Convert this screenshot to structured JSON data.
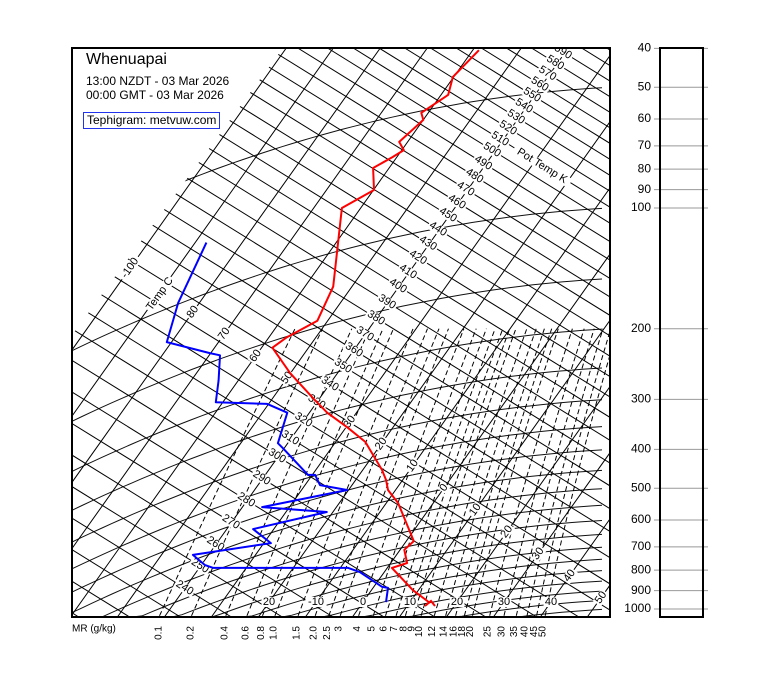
{
  "header": {
    "station": "Whenuapai",
    "local_time": "13:00 NZDT - 03 Mar 2026",
    "gmt_time": "00:00 GMT - 03 Mar 2026",
    "source": "Tephigram: metvuw.com"
  },
  "chart_data": {
    "type": "line",
    "diagram": "tephigram",
    "pressure_axis": {
      "scale": "log",
      "range_hpa": [
        1000,
        40
      ],
      "ticks": [
        "40",
        "50",
        "60",
        "70",
        "80",
        "90",
        "100",
        "200",
        "300",
        "400",
        "500",
        "600",
        "700",
        "800",
        "900",
        "1000"
      ]
    },
    "isotherm_axis_label": "Temp C",
    "isotherm_labels": [
      {
        "t": -100,
        "label": "-100"
      },
      {
        "t": -80,
        "label": "80"
      },
      {
        "t": -70,
        "label": "70"
      },
      {
        "t": -60,
        "label": "60"
      },
      {
        "t": -50,
        "label": "50"
      },
      {
        "t": -30,
        "label": "30"
      },
      {
        "t": -20,
        "label": "20"
      },
      {
        "t": -10,
        "label": "10"
      },
      {
        "t": 0,
        "label": "0"
      },
      {
        "t": 10,
        "label": "10"
      },
      {
        "t": 20,
        "label": "20"
      },
      {
        "t": 30,
        "label": "30"
      },
      {
        "t": 40,
        "label": "40"
      },
      {
        "t": 50,
        "label": "50"
      }
    ],
    "bottom_isotherm_labels": [
      {
        "t": -20,
        "label": "20"
      },
      {
        "t": -10,
        "label": "-10"
      },
      {
        "t": 0,
        "label": "0"
      },
      {
        "t": 10,
        "label": "10"
      },
      {
        "t": 20,
        "label": "20"
      },
      {
        "t": 30,
        "label": "30"
      },
      {
        "t": 40,
        "label": "40"
      }
    ],
    "pot_temp_axis_label": "Pot Temp K",
    "pot_temp_labels": [
      240,
      250,
      260,
      270,
      280,
      290,
      300,
      310,
      320,
      330,
      340,
      350,
      360,
      370,
      380,
      390,
      400,
      410,
      420,
      430,
      440,
      450,
      460,
      470,
      480,
      490,
      500,
      510,
      520,
      530,
      540,
      550,
      560,
      570,
      580,
      590
    ],
    "mixing_ratio_axis_label": "MR (g/kg)",
    "mixing_ratio_labels": [
      "0.1",
      "0.2",
      "0.4",
      "0.6",
      "0.8",
      "1.0",
      "1.5",
      "2.0",
      "2.5",
      "3",
      "4",
      "5",
      "6",
      "7",
      "8",
      "9",
      "10",
      "12",
      "14",
      "16",
      "18",
      "20",
      "25",
      "30",
      "35",
      "40",
      "45",
      "50"
    ],
    "series": [
      {
        "kind": "temperature",
        "color": "#ff0000",
        "pressure_hpa": [
          966,
          897,
          790,
          768,
          712,
          677,
          544,
          505,
          477,
          450,
          383,
          352,
          324,
          298,
          269,
          258,
          223,
          210,
          191,
          157,
          100,
          90.2,
          79.5,
          74.6,
          71.7,
          68.4,
          60.3,
          57.9,
          52.8,
          52.2,
          47.1,
          40.4
        ],
        "temp_c": [
          14.4,
          8.8,
          1.0,
          3.5,
          0.9,
          1.6,
          -7.5,
          -11.6,
          -13.5,
          -15.9,
          -23.7,
          -29.8,
          -36.2,
          -41.4,
          -47.6,
          -50.1,
          -57.7,
          -56.2,
          -52.2,
          -54.0,
          -64.0,
          -59.9,
          -63.4,
          -60.9,
          -59.6,
          -61.8,
          -60.0,
          -61.5,
          -58.8,
          -58.5,
          -60.2,
          -58.7
        ]
      },
      {
        "kind": "dewpoint",
        "color": "#0000ff",
        "pressure_hpa": [
          961,
          886,
          881,
          809,
          790,
          790,
          777,
          733,
          685,
          632,
          573,
          557,
          505,
          491,
          463,
          463,
          397,
          386,
          324,
          308,
          305,
          269,
          233,
          230,
          216,
          172.6,
          122
        ],
        "temp_c": [
          4.9,
          3.2,
          1.8,
          -5.2,
          -8.3,
          -37.0,
          -39.2,
          -43.3,
          -28.5,
          -34.4,
          -21.3,
          -35.8,
          -20.3,
          -26.8,
          -29.4,
          -30.9,
          -40.3,
          -42.1,
          -44.7,
          -50.3,
          -61.5,
          -64.2,
          -67.7,
          -70.2,
          -81.0,
          -84.5,
          -87.6
        ]
      }
    ]
  }
}
